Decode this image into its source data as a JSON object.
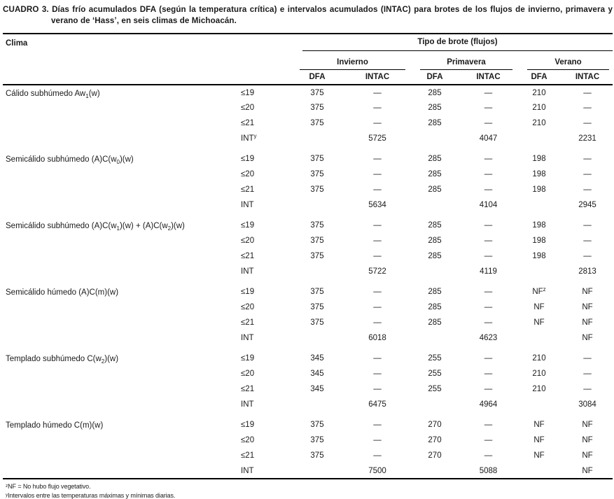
{
  "caption": {
    "label": "CUADRO 3.",
    "text": "Días frío acumulados DFA (según la temperatura crítica) e intervalos acumulados (INTAC) para brotes de los flujos de invierno, primavera y verano de ‘Hass’, en seis climas de Michoacán."
  },
  "table": {
    "clima_header": "Clima",
    "group_header": "Tipo de brote (flujos)",
    "seasons": [
      "Invierno",
      "Primavera",
      "Verano"
    ],
    "subcolumns": [
      "DFA",
      "INTAC",
      "DFA",
      "INTAC",
      "DFA",
      "INTAC"
    ],
    "groups": [
      {
        "clima": [
          {
            "t": "Cálido subhúmedo Aw"
          },
          {
            "t": "1",
            "v": "sub"
          },
          {
            "t": "(w)"
          }
        ],
        "rows": [
          {
            "label": [
              {
                "t": "≤19"
              }
            ],
            "cells": [
              "375",
              "—",
              "285",
              "—",
              "210",
              "—"
            ]
          },
          {
            "label": [
              {
                "t": "≤20"
              }
            ],
            "cells": [
              "375",
              "—",
              "285",
              "—",
              "210",
              "—"
            ]
          },
          {
            "label": [
              {
                "t": "≤21"
              }
            ],
            "cells": [
              "375",
              "—",
              "285",
              "—",
              "210",
              "—"
            ]
          },
          {
            "label": [
              {
                "t": "INT"
              },
              {
                "t": "y",
                "v": "sup"
              }
            ],
            "cells": [
              "",
              "5725",
              "",
              "4047",
              "",
              "2231"
            ]
          }
        ]
      },
      {
        "clima": [
          {
            "t": "Semicálido subhúmedo (A)C(w"
          },
          {
            "t": "0",
            "v": "sub"
          },
          {
            "t": ")(w)"
          }
        ],
        "rows": [
          {
            "label": [
              {
                "t": "≤19"
              }
            ],
            "cells": [
              "375",
              "—",
              "285",
              "—",
              "198",
              "—"
            ]
          },
          {
            "label": [
              {
                "t": "≤20"
              }
            ],
            "cells": [
              "375",
              "—",
              "285",
              "—",
              "198",
              "—"
            ]
          },
          {
            "label": [
              {
                "t": "≤21"
              }
            ],
            "cells": [
              "375",
              "—",
              "285",
              "—",
              "198",
              "—"
            ]
          },
          {
            "label": [
              {
                "t": "INT"
              }
            ],
            "cells": [
              "",
              "5634",
              "",
              "4104",
              "",
              "2945"
            ]
          }
        ]
      },
      {
        "clima": [
          {
            "t": "Semicálido subhúmedo (A)C(w"
          },
          {
            "t": "1",
            "v": "sub"
          },
          {
            "t": ")(w) + (A)C(w"
          },
          {
            "t": "2",
            "v": "sub"
          },
          {
            "t": ")(w)"
          }
        ],
        "rows": [
          {
            "label": [
              {
                "t": "≤19"
              }
            ],
            "cells": [
              "375",
              "—",
              "285",
              "—",
              "198",
              "—"
            ]
          },
          {
            "label": [
              {
                "t": "≤20"
              }
            ],
            "cells": [
              "375",
              "—",
              "285",
              "—",
              "198",
              "—"
            ]
          },
          {
            "label": [
              {
                "t": "≤21"
              }
            ],
            "cells": [
              "375",
              "—",
              "285",
              "—",
              "198",
              "—"
            ]
          },
          {
            "label": [
              {
                "t": "INT"
              }
            ],
            "cells": [
              "",
              "5722",
              "",
              "4119",
              "",
              "2813"
            ]
          }
        ]
      },
      {
        "clima": [
          {
            "t": "Semicálido húmedo (A)C(m)(w)"
          }
        ],
        "rows": [
          {
            "label": [
              {
                "t": "≤19"
              }
            ],
            "cells": [
              "375",
              "—",
              "285",
              "—",
              [
                {
                  "t": "NF"
                },
                {
                  "t": "z",
                  "v": "sup"
                }
              ],
              "NF"
            ]
          },
          {
            "label": [
              {
                "t": "≤20"
              }
            ],
            "cells": [
              "375",
              "—",
              "285",
              "—",
              "NF",
              "NF"
            ]
          },
          {
            "label": [
              {
                "t": "≤21"
              }
            ],
            "cells": [
              "375",
              "—",
              "285",
              "—",
              "NF",
              "NF"
            ]
          },
          {
            "label": [
              {
                "t": "INT"
              }
            ],
            "cells": [
              "",
              "6018",
              "",
              "4623",
              "",
              "NF"
            ]
          }
        ]
      },
      {
        "clima": [
          {
            "t": "Templado subhúmedo C(w"
          },
          {
            "t": "2",
            "v": "sub"
          },
          {
            "t": ")(w)"
          }
        ],
        "rows": [
          {
            "label": [
              {
                "t": "≤19"
              }
            ],
            "cells": [
              "345",
              "—",
              "255",
              "—",
              "210",
              "—"
            ]
          },
          {
            "label": [
              {
                "t": "≤20"
              }
            ],
            "cells": [
              "345",
              "—",
              "255",
              "—",
              "210",
              "—"
            ]
          },
          {
            "label": [
              {
                "t": "≤21"
              }
            ],
            "cells": [
              "345",
              "—",
              "255",
              "—",
              "210",
              "—"
            ]
          },
          {
            "label": [
              {
                "t": "INT"
              }
            ],
            "cells": [
              "",
              "6475",
              "",
              "4964",
              "",
              "3084"
            ]
          }
        ]
      },
      {
        "clima": [
          {
            "t": "Templado húmedo C(m)(w)"
          }
        ],
        "rows": [
          {
            "label": [
              {
                "t": "≤19"
              }
            ],
            "cells": [
              "375",
              "—",
              "270",
              "—",
              "NF",
              "NF"
            ]
          },
          {
            "label": [
              {
                "t": "≤20"
              }
            ],
            "cells": [
              "375",
              "—",
              "270",
              "—",
              "NF",
              "NF"
            ]
          },
          {
            "label": [
              {
                "t": "≤21"
              }
            ],
            "cells": [
              "375",
              "—",
              "270",
              "—",
              "NF",
              "NF"
            ]
          },
          {
            "label": [
              {
                "t": "INT"
              }
            ],
            "cells": [
              "",
              "7500",
              "",
              "5088",
              "",
              "NF"
            ]
          }
        ]
      }
    ]
  },
  "footnotes": [
    [
      {
        "t": "z",
        "v": "sup"
      },
      {
        "t": "NF = No hubo flujo vegetativo."
      }
    ],
    [
      {
        "t": "y",
        "v": "sup"
      },
      {
        "t": "Intervalos entre las temperaturas máximas y mínimas diarias."
      }
    ]
  ],
  "colors": {
    "background": "#ffffff",
    "text": "#1a1a1a",
    "rule": "#000000"
  }
}
